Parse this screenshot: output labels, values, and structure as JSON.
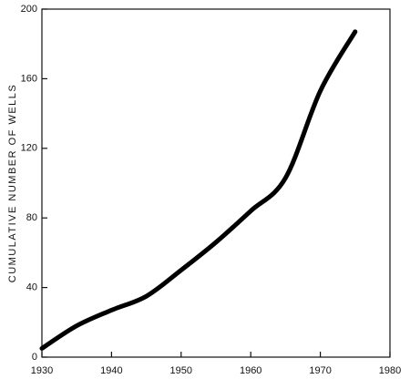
{
  "chart_data": {
    "type": "line",
    "y_label": "CUMULATIVE NUMBER OF WELLS",
    "x": [
      1930,
      1935,
      1940,
      1945,
      1950,
      1955,
      1960,
      1965,
      1970,
      1975
    ],
    "series": [
      {
        "color": "#000000",
        "values": [
          5,
          18,
          27,
          35,
          50,
          66,
          84,
          103,
          153,
          187
        ]
      }
    ],
    "xlim": [
      1930,
      1980
    ],
    "xticks": [
      1930,
      1940,
      1950,
      1960,
      1970,
      1980
    ],
    "ylim": [
      0,
      200
    ],
    "yticks": [
      0,
      40,
      80,
      120,
      160,
      200
    ]
  }
}
